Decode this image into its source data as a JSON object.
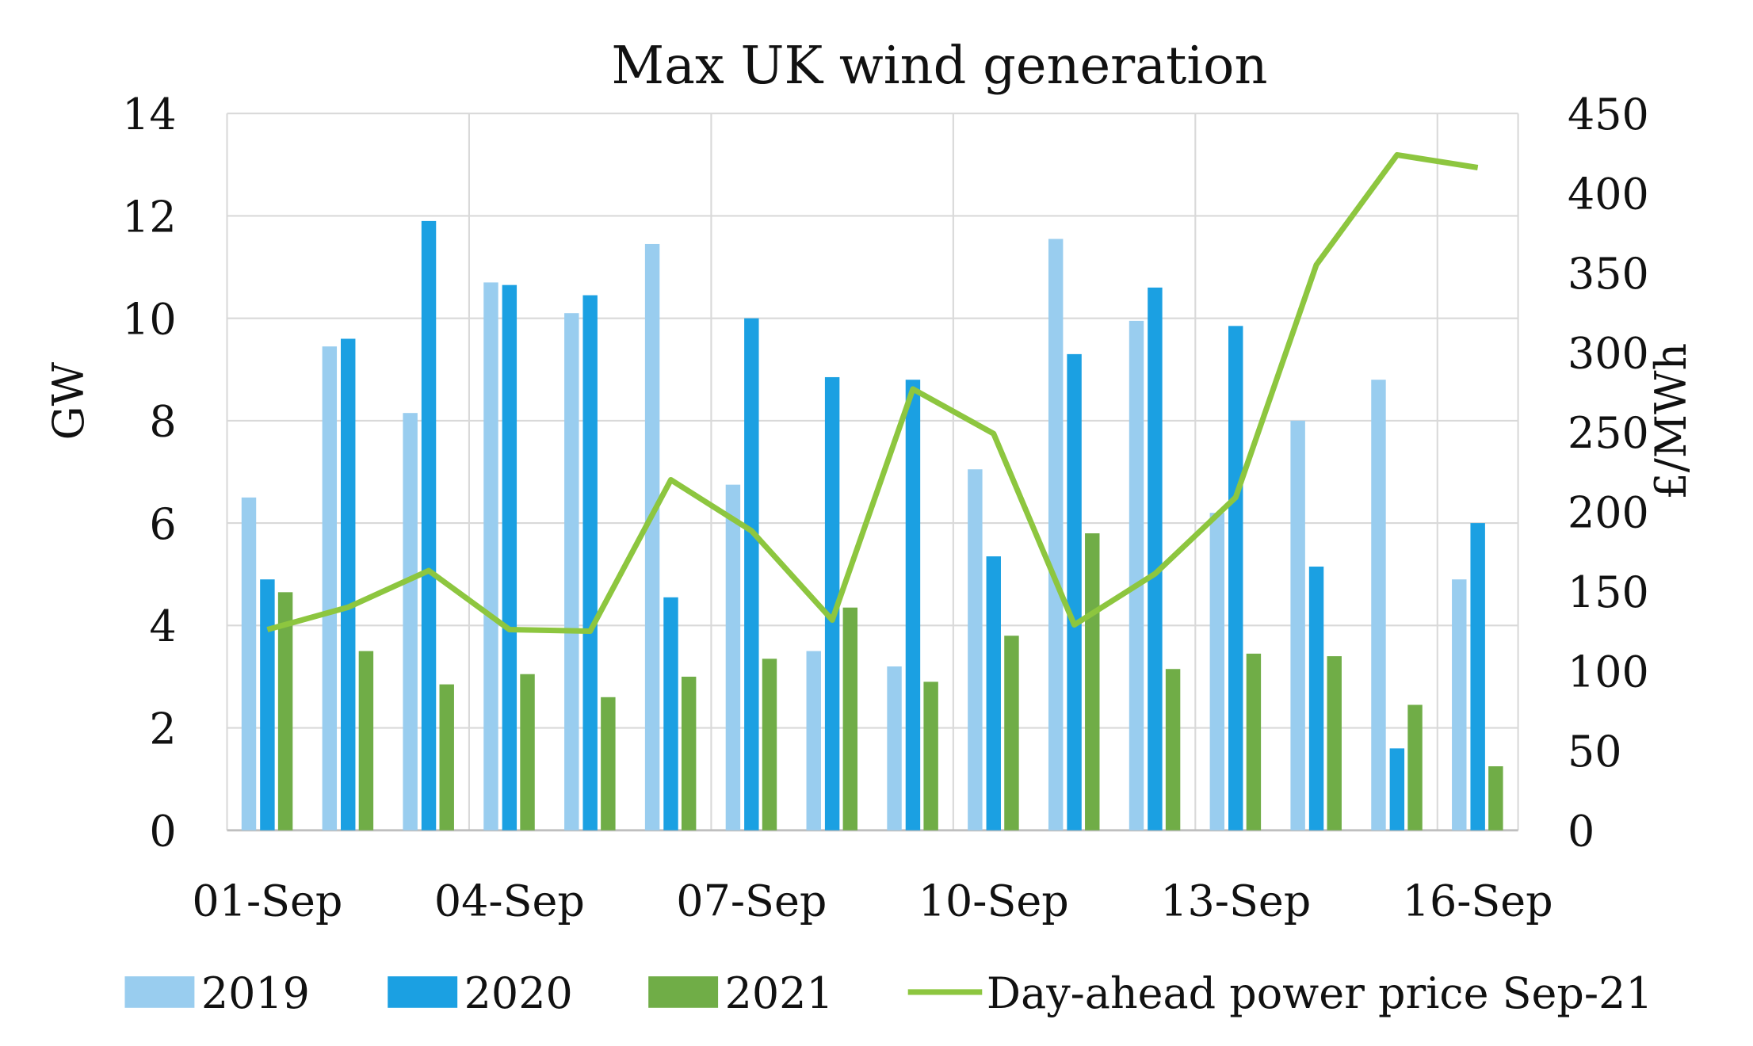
{
  "chart_data": {
    "type": "bar",
    "title": "Max UK wind generation",
    "ylabel": "GW",
    "y2label": "£/MWh",
    "ylim": [
      0,
      14
    ],
    "y2lim": [
      0,
      450
    ],
    "yticks": [
      "0",
      "2",
      "4",
      "6",
      "8",
      "10",
      "12",
      "14"
    ],
    "y2ticks": [
      "0",
      "50",
      "100",
      "150",
      "200",
      "250",
      "300",
      "350",
      "400",
      "450"
    ],
    "categories": [
      "01-Sep",
      "02-Sep",
      "03-Sep",
      "04-Sep",
      "05-Sep",
      "06-Sep",
      "07-Sep",
      "08-Sep",
      "09-Sep",
      "10-Sep",
      "11-Sep",
      "12-Sep",
      "13-Sep",
      "14-Sep",
      "15-Sep",
      "16-Sep"
    ],
    "xtick_labels": [
      "01-Sep",
      "04-Sep",
      "07-Sep",
      "10-Sep",
      "13-Sep",
      "16-Sep"
    ],
    "grid": true,
    "legend_position": "bottom",
    "series": [
      {
        "name": "2019",
        "type": "bar",
        "axis": "left",
        "color": "#99CDEF",
        "values": [
          6.5,
          9.45,
          8.15,
          10.7,
          10.1,
          11.45,
          6.75,
          3.5,
          3.2,
          7.05,
          11.55,
          9.95,
          6.2,
          8.0,
          8.8,
          4.9
        ]
      },
      {
        "name": "2020",
        "type": "bar",
        "axis": "left",
        "color": "#1BA0E2",
        "values": [
          4.9,
          9.6,
          11.9,
          10.65,
          10.45,
          4.55,
          10.0,
          8.85,
          8.8,
          5.35,
          9.3,
          10.6,
          9.85,
          5.15,
          1.6,
          6.0
        ]
      },
      {
        "name": "2021",
        "type": "bar",
        "axis": "left",
        "color": "#70AD47",
        "values": [
          4.65,
          3.5,
          2.85,
          3.05,
          2.6,
          3.0,
          3.35,
          4.35,
          2.9,
          3.8,
          5.8,
          3.15,
          3.45,
          3.4,
          2.45,
          1.25
        ]
      },
      {
        "name": "Day-ahead power price Sep-21",
        "type": "line",
        "axis": "right",
        "color": "#8DC63F",
        "values": [
          126,
          140,
          163,
          126,
          125,
          220,
          188,
          132,
          277,
          249,
          129,
          161,
          209,
          355,
          424,
          416
        ]
      }
    ]
  }
}
